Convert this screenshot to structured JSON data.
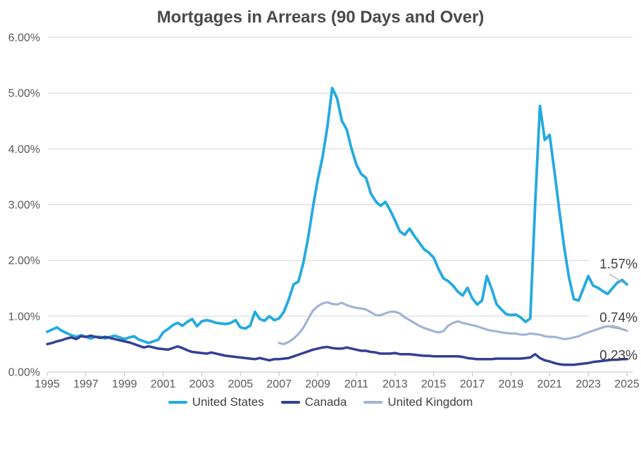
{
  "page": {
    "background": "#FFFFFF"
  },
  "chart_data": {
    "type": "line",
    "title": "Mortgages in Arrears (90 Days and Over)",
    "xlabel": "",
    "ylabel": "",
    "grid": true,
    "legend_position": "bottom",
    "x_axis": {
      "range": [
        1995,
        2025
      ],
      "tick_years": [
        1995,
        1997,
        1999,
        2001,
        2003,
        2005,
        2007,
        2009,
        2011,
        2013,
        2015,
        2017,
        2019,
        2021,
        2023,
        2025
      ]
    },
    "y_axis": {
      "range": [
        0,
        6
      ],
      "tick_values": [
        0,
        1,
        2,
        3,
        4,
        5,
        6
      ],
      "tick_labels": [
        "0.00%",
        "1.00%",
        "2.00%",
        "3.00%",
        "4.00%",
        "5.00%",
        "6.00%"
      ]
    },
    "colors": {
      "grid": "#D9D9D9",
      "axis_line": "#D9D9D9",
      "tick_mark": "#BFBFBF",
      "axis_text": "#595959",
      "label_text": "#404040",
      "leader_line": "#A6A6A6"
    },
    "series": [
      {
        "name": "United States",
        "color": "#24AAE1",
        "stroke_width": 3.8,
        "start_year": 1995,
        "period_years": 0.25,
        "values": [
          0.72,
          0.76,
          0.8,
          0.74,
          0.7,
          0.66,
          0.63,
          0.66,
          0.63,
          0.6,
          0.63,
          0.63,
          0.6,
          0.63,
          0.65,
          0.62,
          0.59,
          0.62,
          0.64,
          0.58,
          0.55,
          0.52,
          0.55,
          0.58,
          0.71,
          0.77,
          0.84,
          0.88,
          0.83,
          0.9,
          0.95,
          0.82,
          0.91,
          0.93,
          0.91,
          0.88,
          0.87,
          0.86,
          0.88,
          0.93,
          0.8,
          0.78,
          0.83,
          1.08,
          0.95,
          0.92,
          1.0,
          0.93,
          0.96,
          1.08,
          1.3,
          1.57,
          1.62,
          1.95,
          2.4,
          2.95,
          3.45,
          3.85,
          4.4,
          5.09,
          4.91,
          4.5,
          4.35,
          4.0,
          3.72,
          3.55,
          3.48,
          3.2,
          3.06,
          2.98,
          3.05,
          2.9,
          2.72,
          2.52,
          2.46,
          2.57,
          2.44,
          2.32,
          2.2,
          2.14,
          2.05,
          1.85,
          1.68,
          1.63,
          1.55,
          1.44,
          1.37,
          1.51,
          1.32,
          1.21,
          1.28,
          1.72,
          1.49,
          1.22,
          1.12,
          1.04,
          1.02,
          1.03,
          0.98,
          0.9,
          0.96,
          3.0,
          4.77,
          4.16,
          4.25,
          3.6,
          2.9,
          2.25,
          1.7,
          1.31,
          1.28,
          1.5,
          1.72,
          1.55,
          1.51,
          1.45,
          1.4,
          1.5,
          1.6,
          1.65,
          1.57
        ]
      },
      {
        "name": "Canada",
        "color": "#333F94",
        "stroke_width": 3.5,
        "start_year": 1995,
        "period_years": 0.25,
        "values": [
          0.5,
          0.52,
          0.55,
          0.57,
          0.6,
          0.62,
          0.59,
          0.64,
          0.63,
          0.65,
          0.63,
          0.61,
          0.63,
          0.61,
          0.59,
          0.57,
          0.55,
          0.53,
          0.5,
          0.47,
          0.44,
          0.46,
          0.44,
          0.42,
          0.41,
          0.4,
          0.43,
          0.46,
          0.43,
          0.39,
          0.36,
          0.35,
          0.34,
          0.33,
          0.35,
          0.33,
          0.31,
          0.29,
          0.28,
          0.27,
          0.26,
          0.25,
          0.24,
          0.23,
          0.25,
          0.23,
          0.21,
          0.23,
          0.23,
          0.24,
          0.25,
          0.28,
          0.31,
          0.34,
          0.37,
          0.4,
          0.42,
          0.44,
          0.45,
          0.43,
          0.42,
          0.42,
          0.44,
          0.42,
          0.4,
          0.38,
          0.38,
          0.36,
          0.35,
          0.33,
          0.33,
          0.33,
          0.34,
          0.32,
          0.32,
          0.32,
          0.31,
          0.3,
          0.29,
          0.29,
          0.28,
          0.28,
          0.28,
          0.28,
          0.28,
          0.28,
          0.27,
          0.25,
          0.24,
          0.23,
          0.23,
          0.23,
          0.23,
          0.24,
          0.24,
          0.24,
          0.24,
          0.24,
          0.24,
          0.25,
          0.26,
          0.32,
          0.25,
          0.21,
          0.19,
          0.16,
          0.14,
          0.13,
          0.13,
          0.13,
          0.14,
          0.15,
          0.16,
          0.18,
          0.19,
          0.2,
          0.21,
          0.22,
          0.22,
          0.23,
          0.23
        ]
      },
      {
        "name": "United Kingdom",
        "color": "#A0B4D7",
        "stroke_width": 3.2,
        "start_year": 2007,
        "period_years": 0.25,
        "values": [
          0.52,
          0.5,
          0.54,
          0.6,
          0.68,
          0.79,
          0.95,
          1.1,
          1.18,
          1.23,
          1.25,
          1.22,
          1.21,
          1.24,
          1.2,
          1.17,
          1.15,
          1.14,
          1.12,
          1.07,
          1.02,
          1.02,
          1.05,
          1.08,
          1.08,
          1.05,
          0.98,
          0.93,
          0.88,
          0.83,
          0.79,
          0.76,
          0.73,
          0.71,
          0.73,
          0.83,
          0.88,
          0.91,
          0.88,
          0.86,
          0.84,
          0.82,
          0.79,
          0.76,
          0.74,
          0.73,
          0.71,
          0.7,
          0.69,
          0.69,
          0.67,
          0.67,
          0.69,
          0.68,
          0.67,
          0.64,
          0.63,
          0.63,
          0.61,
          0.59,
          0.6,
          0.62,
          0.64,
          0.68,
          0.71,
          0.74,
          0.77,
          0.8,
          0.82,
          0.82,
          0.8,
          0.77,
          0.74
        ]
      }
    ],
    "end_labels": [
      {
        "text": "1.57%",
        "series": "United States",
        "leader": true
      },
      {
        "text": "0.74%",
        "series": "United Kingdom",
        "leader": true
      },
      {
        "text": "0.23%",
        "series": "Canada",
        "leader": false
      }
    ],
    "legend": {
      "items": [
        "United States",
        "Canada",
        "United Kingdom"
      ]
    }
  }
}
